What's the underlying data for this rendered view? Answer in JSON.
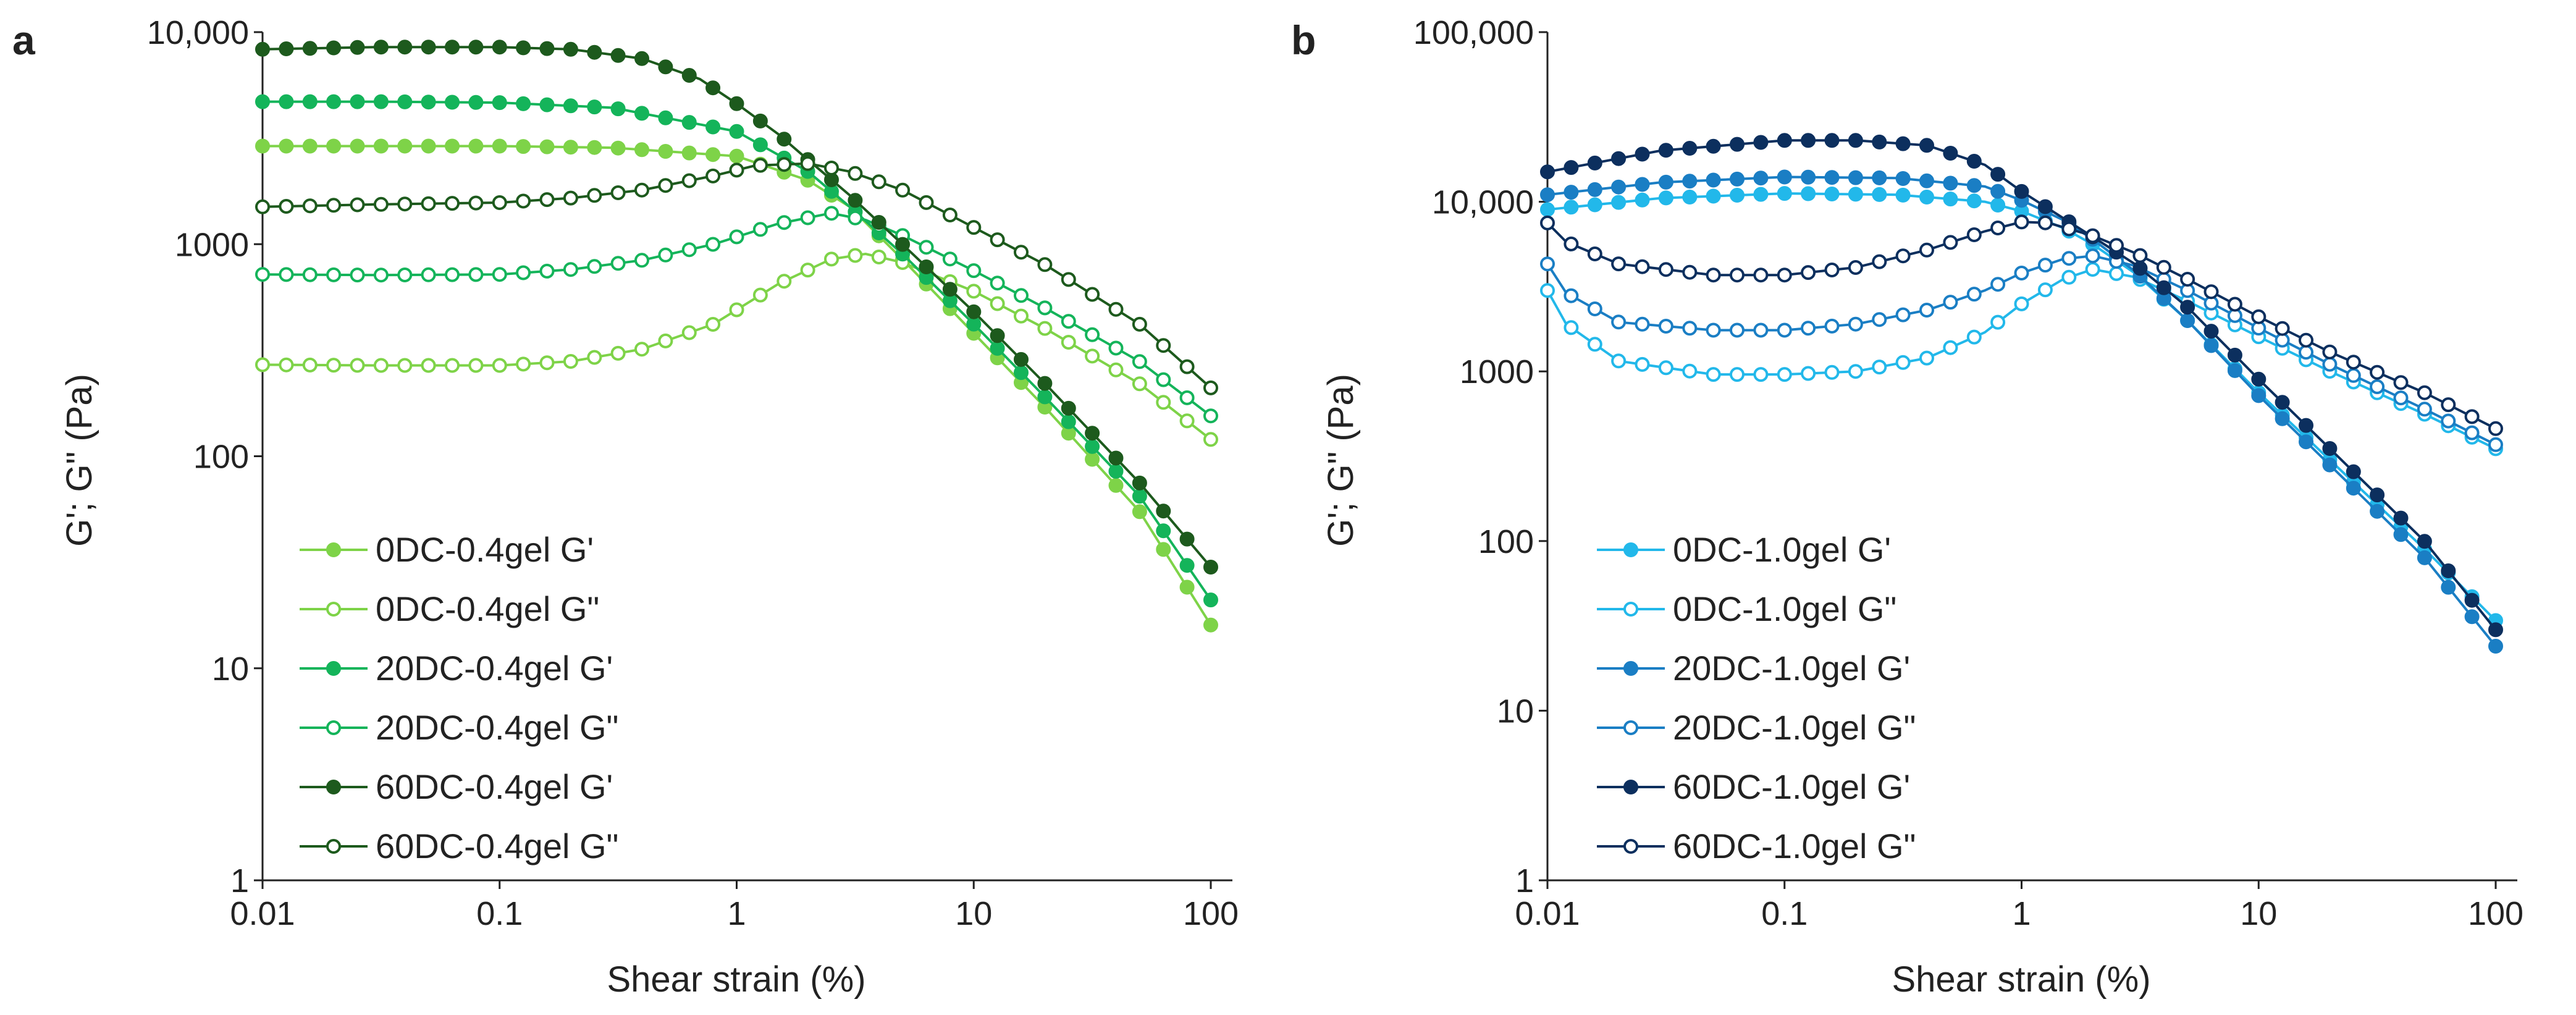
{
  "chart_data": [
    {
      "panel": "a",
      "type": "line",
      "xscale": "log",
      "yscale": "log",
      "xlabel": "Shear strain (%)",
      "ylabel": "G'; G\" (Pa)",
      "xlim": [
        0.01,
        100
      ],
      "ylim": [
        1,
        10000
      ],
      "xticks": [
        "0.01",
        "0.1",
        "1",
        "10",
        "100"
      ],
      "yticks": [
        "1",
        "10",
        "100",
        "1000",
        "10,000"
      ],
      "legend_position": "bottom-left",
      "series": [
        {
          "name": "0DC-0.4gel  G'",
          "color": "#7ed348",
          "marker": "filled",
          "x": [
            0.01,
            0.03,
            0.1,
            0.3,
            1,
            2,
            3,
            5,
            10,
            20,
            50,
            100
          ],
          "y": [
            2900,
            2900,
            2900,
            2850,
            2600,
            2000,
            1500,
            850,
            380,
            170,
            55,
            16
          ]
        },
        {
          "name": "0DC-0.4gel  G\"",
          "color": "#7ed348",
          "marker": "open",
          "x": [
            0.01,
            0.03,
            0.1,
            0.2,
            0.4,
            0.8,
            1.5,
            2.5,
            3.5,
            5,
            10,
            20,
            50,
            100
          ],
          "y": [
            270,
            268,
            268,
            280,
            320,
            420,
            650,
            850,
            900,
            820,
            600,
            400,
            220,
            120
          ]
        },
        {
          "name": "20DC-0.4gel G'",
          "color": "#14b45a",
          "marker": "filled",
          "x": [
            0.01,
            0.03,
            0.1,
            0.3,
            1,
            2,
            3,
            5,
            10,
            20,
            50,
            100
          ],
          "y": [
            4700,
            4700,
            4650,
            4400,
            3400,
            2200,
            1500,
            900,
            420,
            190,
            65,
            21
          ]
        },
        {
          "name": "20DC-0.4gel G\"",
          "color": "#14b45a",
          "marker": "open",
          "x": [
            0.01,
            0.03,
            0.1,
            0.2,
            0.4,
            0.8,
            1.5,
            2.5,
            3.5,
            5,
            10,
            20,
            50,
            100
          ],
          "y": [
            720,
            715,
            720,
            760,
            840,
            1000,
            1250,
            1400,
            1300,
            1100,
            750,
            500,
            280,
            155
          ]
        },
        {
          "name": "60DC-0.4gel  G'",
          "color": "#1d5a1d",
          "marker": "filled",
          "x": [
            0.01,
            0.03,
            0.1,
            0.2,
            0.4,
            0.7,
            1,
            1.5,
            2,
            3,
            5,
            10,
            20,
            50,
            100
          ],
          "y": [
            8300,
            8500,
            8500,
            8300,
            7500,
            6000,
            4600,
            3300,
            2500,
            1700,
            1000,
            480,
            220,
            75,
            30
          ]
        },
        {
          "name": "60DC-0.4gel  G\"",
          "color": "#1d5a1d",
          "marker": "open",
          "x": [
            0.01,
            0.03,
            0.1,
            0.2,
            0.4,
            0.8,
            1.2,
            2,
            3,
            5,
            10,
            20,
            50,
            100
          ],
          "y": [
            1500,
            1540,
            1570,
            1650,
            1800,
            2100,
            2350,
            2400,
            2200,
            1800,
            1200,
            800,
            420,
            210
          ]
        }
      ]
    },
    {
      "panel": "b",
      "type": "line",
      "xscale": "log",
      "yscale": "log",
      "xlabel": "Shear strain (%)",
      "ylabel": "G'; G\" (Pa)",
      "xlim": [
        0.01,
        100
      ],
      "ylim": [
        1,
        100000
      ],
      "xticks": [
        "0.01",
        "0.1",
        "1",
        "10",
        "100"
      ],
      "yticks": [
        "1",
        "10",
        "100",
        "1000",
        "10,000",
        "100,000"
      ],
      "legend_position": "bottom-left",
      "series": [
        {
          "name": "0DC-1.0gel G'",
          "color": "#22b8ea",
          "marker": "filled",
          "x": [
            0.01,
            0.03,
            0.1,
            0.3,
            0.7,
            1,
            1.5,
            2,
            3,
            5,
            10,
            20,
            50,
            100
          ],
          "y": [
            9000,
            10500,
            11200,
            11000,
            10000,
            8800,
            7000,
            5600,
            3800,
            2000,
            750,
            300,
            90,
            34
          ]
        },
        {
          "name": "0DC-1.0gel G\"",
          "color": "#22b8ea",
          "marker": "open",
          "x": [
            0.01,
            0.012,
            0.02,
            0.05,
            0.1,
            0.2,
            0.4,
            0.7,
            1,
            1.5,
            2,
            3,
            5,
            10,
            20,
            50,
            100
          ],
          "y": [
            3000,
            1900,
            1150,
            960,
            960,
            1000,
            1200,
            1700,
            2500,
            3500,
            4000,
            3600,
            2600,
            1600,
            1000,
            560,
            350
          ]
        },
        {
          "name": "20DC-1.0gel G'",
          "color": "#1a7ec4",
          "marker": "filled",
          "x": [
            0.01,
            0.03,
            0.1,
            0.3,
            0.7,
            1,
            1.5,
            2,
            3,
            5,
            10,
            20,
            50,
            100
          ],
          "y": [
            11000,
            13000,
            14000,
            13800,
            12300,
            10200,
            7800,
            6000,
            3900,
            2000,
            720,
            280,
            80,
            24
          ]
        },
        {
          "name": "20DC-1.0gel G\"",
          "color": "#1a7ec4",
          "marker": "open",
          "x": [
            0.01,
            0.012,
            0.02,
            0.05,
            0.1,
            0.2,
            0.4,
            0.7,
            1,
            1.5,
            2,
            3,
            5,
            10,
            20,
            50,
            100
          ],
          "y": [
            4300,
            2900,
            1950,
            1750,
            1750,
            1900,
            2300,
            3000,
            3800,
            4600,
            4800,
            4200,
            3000,
            1800,
            1100,
            600,
            370
          ]
        },
        {
          "name": "60DC-1.0gel G'",
          "color": "#0c2f5e",
          "marker": "filled",
          "x": [
            0.01,
            0.03,
            0.1,
            0.2,
            0.4,
            0.7,
            1,
            1.5,
            2,
            3,
            5,
            10,
            20,
            50,
            100
          ],
          "y": [
            15000,
            20000,
            23000,
            23000,
            21500,
            16500,
            11500,
            8000,
            6200,
            4300,
            2400,
            900,
            350,
            100,
            30
          ]
        },
        {
          "name": "60DC-1.0gel G\"",
          "color": "#0c2f5e",
          "marker": "open",
          "x": [
            0.01,
            0.012,
            0.02,
            0.05,
            0.1,
            0.2,
            0.4,
            0.7,
            1,
            1.3,
            2,
            3,
            5,
            10,
            20,
            50,
            100
          ],
          "y": [
            7500,
            5800,
            4300,
            3700,
            3700,
            4100,
            5200,
            6700,
            7600,
            7500,
            6300,
            5000,
            3500,
            2100,
            1300,
            750,
            460
          ]
        }
      ]
    }
  ]
}
